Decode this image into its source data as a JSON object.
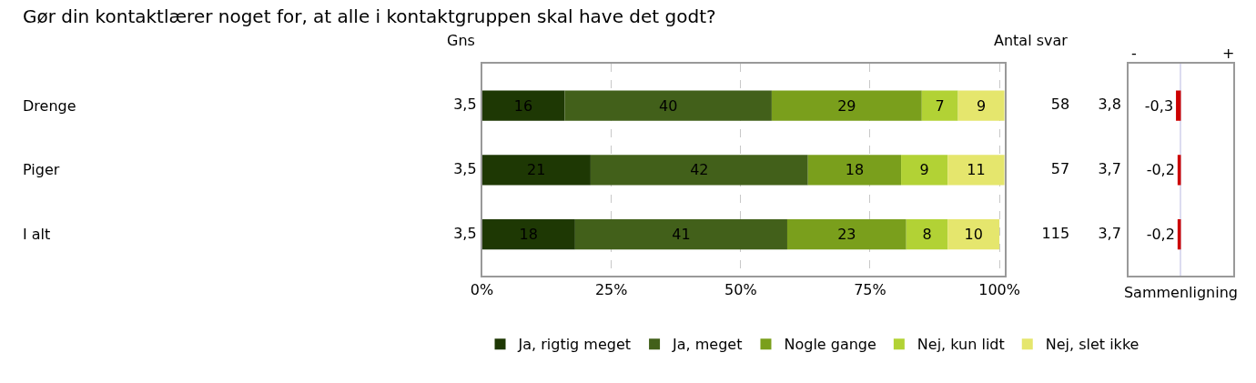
{
  "chart_data": [
    {
      "type": "bar",
      "title": "Gør din kontaktlærer noget for, at alle i kontaktgruppen skal have det godt?",
      "orientation": "horizontal",
      "stacked": true,
      "categories": [
        "Drenge",
        "Piger",
        "I alt"
      ],
      "series": [
        {
          "name": "Ja, rigtig meget",
          "color": "#1e3804",
          "values": [
            16,
            21,
            18
          ]
        },
        {
          "name": "Ja, meget",
          "color": "#42601a",
          "values": [
            40,
            42,
            41
          ]
        },
        {
          "name": "Nogle gange",
          "color": "#7a9f1c",
          "values": [
            29,
            18,
            23
          ]
        },
        {
          "name": "Nej, kun lidt",
          "color": "#b2d235",
          "values": [
            7,
            9,
            8
          ]
        },
        {
          "name": "Nej, slet ikke",
          "color": "#e5e66d",
          "values": [
            9,
            11,
            10
          ]
        }
      ],
      "xlim": [
        0,
        101
      ],
      "xticks": [
        {
          "value": 0,
          "label": "0%"
        },
        {
          "value": 25,
          "label": "25%"
        },
        {
          "value": 50,
          "label": "50%"
        },
        {
          "value": 75,
          "label": "75%"
        },
        {
          "value": 100,
          "label": "100%"
        }
      ],
      "grid": "x",
      "legend": "bottom",
      "data_labels": true,
      "tick_labels": "x"
    },
    {
      "type": "other",
      "title": "Gns",
      "values": [
        3.5,
        3.5,
        3.5
      ],
      "value_labels": [
        "3,5",
        "3,5",
        "3,5"
      ]
    },
    {
      "type": "other",
      "title": "Antal svar",
      "values": [
        58,
        57,
        115
      ],
      "value_labels": [
        "58",
        "57",
        "115"
      ]
    },
    {
      "type": "other",
      "values": [
        3.8,
        3.7,
        3.7
      ],
      "value_labels": [
        "3,8",
        "3,7",
        "3,7"
      ]
    },
    {
      "type": "bar",
      "orientation": "horizontal",
      "xlabel": "Sammenligning",
      "color": "#cc0000",
      "values": [
        -0.3,
        -0.2,
        -0.2
      ],
      "value_labels": [
        "-0,3",
        "-0,2",
        "-0,2"
      ],
      "tick_labels": false,
      "annotations": [
        "-",
        "+"
      ]
    }
  ]
}
